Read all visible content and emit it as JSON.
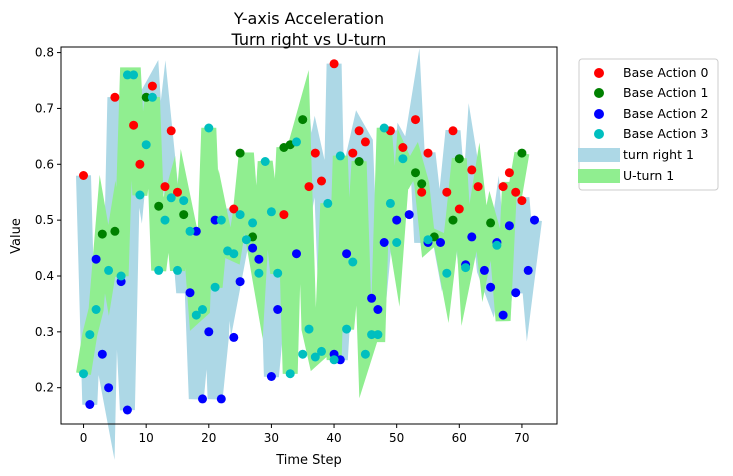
{
  "chart_data": {
    "type": "scatter",
    "title": "Y-axis Acceleration",
    "subtitle": "Turn right vs U-turn",
    "xlabel": "Time Step",
    "ylabel": "Value",
    "xlim": [
      -3.6,
      75.6
    ],
    "ylim": [
      0.135,
      0.81
    ],
    "xticks": [
      0,
      10,
      20,
      30,
      40,
      50,
      60,
      70
    ],
    "yticks": [
      0.2,
      0.3,
      0.4,
      0.5,
      0.6,
      0.7,
      0.8
    ],
    "legend_position": "outside-upper-right",
    "lines": [
      {
        "name": "turn right 1",
        "color": "#add8e6",
        "x": [
          0,
          1,
          2,
          3,
          4,
          5,
          6,
          7,
          8,
          9,
          10,
          11,
          12,
          13,
          14,
          15,
          16,
          17,
          18,
          19,
          20,
          21,
          22,
          23,
          24,
          25,
          26,
          27,
          28,
          29,
          30,
          31,
          32,
          33,
          34,
          35,
          36,
          37,
          38,
          39,
          40,
          41,
          42,
          43,
          44,
          45,
          46,
          47,
          48,
          49,
          50,
          51,
          52,
          53,
          54,
          55,
          56,
          57,
          58,
          59,
          60,
          61,
          62,
          63,
          64,
          65,
          66,
          67,
          68,
          69,
          70,
          71,
          72
        ],
        "values": [
          0.58,
          0.17,
          0.43,
          0.26,
          0.2,
          0.72,
          0.39,
          0.16,
          0.67,
          0.6,
          0.72,
          0.74,
          0.56,
          0.66,
          0.55,
          0.51,
          0.37,
          0.48,
          0.18,
          0.3,
          0.5,
          0.18,
          0.29,
          0.52,
          0.39,
          0.45,
          0.47,
          0.47,
          0.43,
          0.6,
          0.22,
          0.34,
          0.51,
          0.63,
          0.44,
          0.68,
          0.56,
          0.62,
          0.57,
          0.26,
          0.78,
          0.25,
          0.44,
          0.61,
          0.66,
          0.64,
          0.36,
          0.34,
          0.46,
          0.66,
          0.5,
          0.63,
          0.61,
          0.68,
          0.46,
          0.62,
          0.52,
          0.46,
          0.55,
          0.66,
          0.52,
          0.42,
          0.59,
          0.52,
          0.41,
          0.38,
          0.46,
          0.33,
          0.49,
          0.37,
          0.54,
          0.41,
          0.5
        ]
      },
      {
        "name": "U-turn 1",
        "color": "#90ee90",
        "x": [
          0,
          1,
          2,
          3,
          4,
          5,
          6,
          7,
          8,
          9,
          10,
          11,
          12,
          13,
          14,
          15,
          16,
          17,
          18,
          19,
          20,
          21,
          22,
          23,
          24,
          25,
          26,
          27,
          28,
          29,
          30,
          31,
          32,
          33,
          34,
          35,
          36,
          37,
          38,
          39,
          40,
          41,
          42,
          43,
          44,
          45,
          46,
          47,
          48,
          49,
          50,
          51,
          52,
          53,
          54,
          55,
          56,
          57,
          58,
          59,
          60,
          61,
          62,
          63,
          64,
          65,
          66,
          67,
          68,
          69,
          70
        ],
        "values": [
          0.225,
          0.295,
          0.34,
          0.475,
          0.41,
          0.48,
          0.4,
          0.76,
          0.76,
          0.545,
          0.635,
          0.72,
          0.41,
          0.5,
          0.54,
          0.41,
          0.535,
          0.48,
          0.33,
          0.34,
          0.665,
          0.38,
          0.5,
          0.445,
          0.44,
          0.51,
          0.62,
          0.47,
          0.405,
          0.605,
          0.515,
          0.405,
          0.63,
          0.225,
          0.64,
          0.68,
          0.305,
          0.255,
          0.265,
          0.53,
          0.25,
          0.615,
          0.305,
          0.425,
          0.605,
          0.26,
          0.295,
          0.295,
          0.665,
          0.53,
          0.46,
          0.61,
          0.585,
          0.605,
          0.565,
          0.46,
          0.47,
          0.465,
          0.405,
          0.5,
          0.61,
          0.415,
          0.47,
          0.54,
          0.44,
          0.495,
          0.455,
          0.32,
          0.555,
          0.555,
          0.62
        ]
      }
    ],
    "series": [
      {
        "name": "Base Action 0",
        "color": "#ff0000",
        "x": [
          0,
          5,
          8,
          9,
          11,
          13,
          14,
          15,
          24,
          32,
          36,
          37,
          38,
          40,
          43,
          44,
          45,
          49,
          51,
          53,
          54,
          55,
          58,
          59,
          60,
          62,
          63,
          67,
          68,
          69,
          70
        ],
        "values": [
          0.58,
          0.72,
          0.67,
          0.6,
          0.74,
          0.56,
          0.66,
          0.55,
          0.52,
          0.51,
          0.56,
          0.62,
          0.57,
          0.78,
          0.62,
          0.66,
          0.64,
          0.66,
          0.63,
          0.68,
          0.55,
          0.62,
          0.55,
          0.66,
          0.52,
          0.59,
          0.56,
          0.56,
          0.585,
          0.55,
          0.535
        ]
      },
      {
        "name": "Base Action 1",
        "color": "#008000",
        "x": [
          3,
          5,
          10,
          12,
          16,
          25,
          27,
          32,
          33,
          35,
          44,
          53,
          54,
          56,
          59,
          60,
          65,
          70
        ],
        "values": [
          0.475,
          0.48,
          0.72,
          0.525,
          0.51,
          0.62,
          0.47,
          0.63,
          0.635,
          0.68,
          0.605,
          0.585,
          0.565,
          0.47,
          0.5,
          0.61,
          0.495,
          0.62
        ]
      },
      {
        "name": "Base Action 2",
        "color": "#0000ff",
        "x": [
          1,
          2,
          3,
          4,
          6,
          7,
          17,
          18,
          19,
          20,
          21,
          22,
          24,
          25,
          27,
          28,
          30,
          31,
          34,
          40,
          41,
          42,
          46,
          47,
          48,
          50,
          52,
          55,
          57,
          61,
          62,
          64,
          65,
          66,
          67,
          68,
          69,
          71,
          72
        ],
        "values": [
          0.17,
          0.43,
          0.26,
          0.2,
          0.39,
          0.16,
          0.37,
          0.48,
          0.18,
          0.3,
          0.5,
          0.18,
          0.29,
          0.39,
          0.45,
          0.43,
          0.22,
          0.34,
          0.44,
          0.26,
          0.25,
          0.44,
          0.36,
          0.34,
          0.46,
          0.5,
          0.51,
          0.46,
          0.46,
          0.42,
          0.47,
          0.41,
          0.38,
          0.46,
          0.33,
          0.49,
          0.37,
          0.41,
          0.5
        ]
      },
      {
        "name": "Base Action 3",
        "color": "#00bfbf",
        "x": [
          0,
          1,
          2,
          4,
          6,
          7,
          8,
          9,
          10,
          11,
          12,
          13,
          14,
          15,
          16,
          17,
          18,
          19,
          20,
          21,
          22,
          23,
          24,
          25,
          26,
          27,
          28,
          29,
          30,
          31,
          33,
          34,
          35,
          36,
          37,
          38,
          39,
          40,
          41,
          42,
          43,
          45,
          46,
          47,
          48,
          49,
          50,
          51,
          55,
          58,
          61,
          66
        ],
        "values": [
          0.225,
          0.295,
          0.34,
          0.41,
          0.4,
          0.76,
          0.76,
          0.545,
          0.635,
          0.72,
          0.41,
          0.5,
          0.54,
          0.41,
          0.535,
          0.48,
          0.33,
          0.34,
          0.665,
          0.38,
          0.5,
          0.445,
          0.44,
          0.51,
          0.465,
          0.495,
          0.405,
          0.605,
          0.515,
          0.405,
          0.225,
          0.64,
          0.26,
          0.305,
          0.255,
          0.265,
          0.53,
          0.25,
          0.615,
          0.305,
          0.425,
          0.26,
          0.295,
          0.295,
          0.665,
          0.53,
          0.46,
          0.61,
          0.465,
          0.405,
          0.415,
          0.455
        ]
      }
    ]
  }
}
